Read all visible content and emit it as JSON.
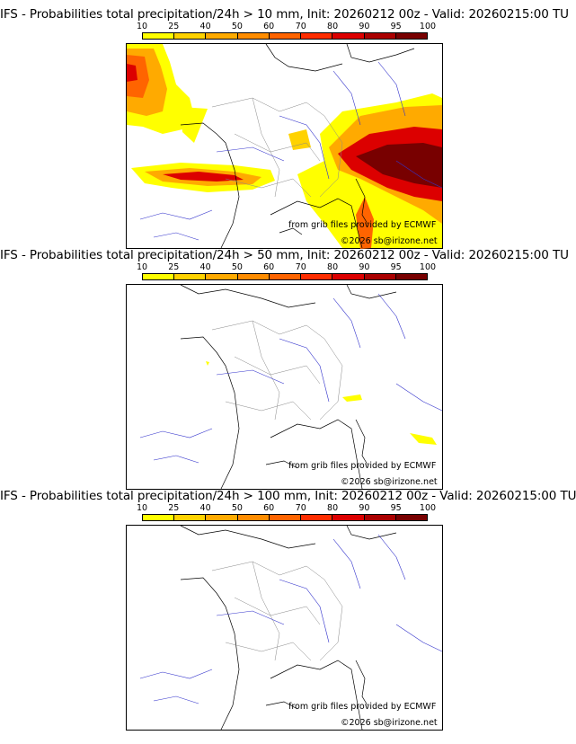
{
  "colorbar": {
    "ticks": [
      "10",
      "25",
      "40",
      "50",
      "60",
      "70",
      "80",
      "90",
      "95",
      "100"
    ],
    "colors": [
      "#ffff00",
      "#ffd200",
      "#ffaa00",
      "#ff8c00",
      "#ff6400",
      "#ff2d00",
      "#dc0000",
      "#aa0000",
      "#780000"
    ]
  },
  "credits": {
    "source": "from grib files provided by ECMWF",
    "copyright": "©2026 sb@irizone.net"
  },
  "panels": [
    {
      "title": "IFS - Probabilities total precipitation/24h > 10 mm, Init: 20260212 00z - Valid: 20260215:00 TU",
      "threshold_mm": 10
    },
    {
      "title": "IFS - Probabilities total precipitation/24h > 50 mm, Init: 20260212 00z - Valid: 20260215:00 TU",
      "threshold_mm": 50
    },
    {
      "title": "IFS - Probabilities total precipitation/24h > 100 mm, Init: 20260212 00z - Valid: 20260215:00 TU",
      "threshold_mm": 100
    }
  ]
}
